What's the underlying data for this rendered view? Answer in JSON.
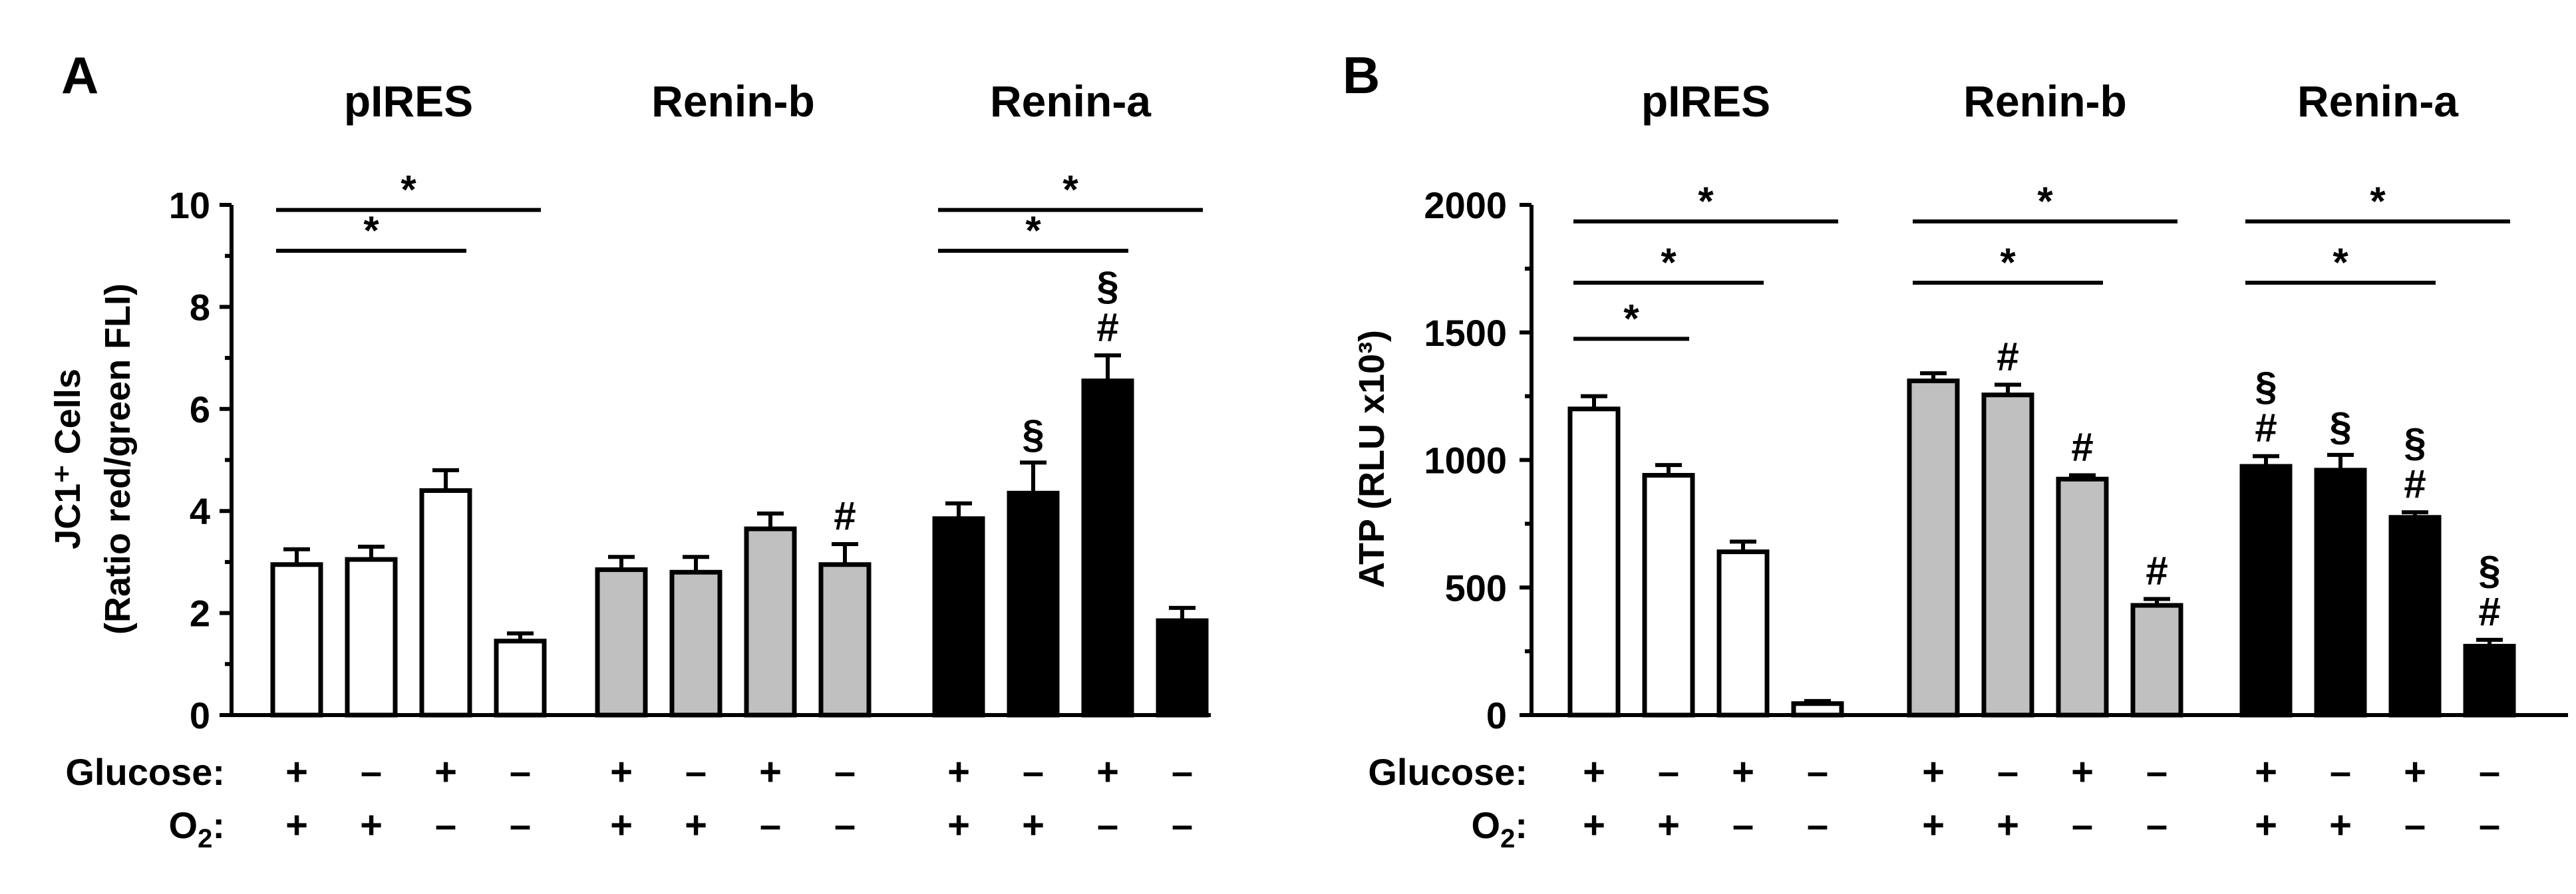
{
  "chart_data": [
    {
      "panel": "A",
      "type": "bar",
      "ylabel_line1": "JC1⁺ Cells",
      "ylabel_line2": "(Ratio red/green FLI)",
      "ylim": [
        0,
        10
      ],
      "yticks": [
        0,
        2,
        4,
        6,
        8,
        10
      ],
      "groups": [
        {
          "name": "pIRES",
          "color": "#ffffff",
          "values": [
            2.95,
            3.05,
            4.4,
            1.45
          ],
          "errors": [
            0.3,
            0.25,
            0.4,
            0.15
          ],
          "marks": [
            "",
            "",
            "",
            ""
          ]
        },
        {
          "name": "Renin-b",
          "color": "#c0c0c0",
          "values": [
            2.85,
            2.8,
            3.65,
            2.95
          ],
          "errors": [
            0.25,
            0.3,
            0.3,
            0.4
          ],
          "marks": [
            "",
            "",
            "",
            "#"
          ]
        },
        {
          "name": "Renin-a",
          "color": "#000000",
          "values": [
            3.85,
            4.35,
            6.55,
            1.85
          ],
          "errors": [
            0.3,
            0.6,
            0.5,
            0.25
          ],
          "marks": [
            "",
            "§",
            "§\n#",
            ""
          ]
        }
      ],
      "significance": [
        {
          "group": 0,
          "from": 0,
          "to": 3,
          "label": "*",
          "y": 9.9
        },
        {
          "group": 0,
          "from": 0,
          "to": 2,
          "label": "*",
          "y": 9.1
        },
        {
          "group": 2,
          "from": 0,
          "to": 3,
          "label": "*",
          "y": 9.9
        },
        {
          "group": 2,
          "from": 0,
          "to": 2,
          "label": "*",
          "y": 9.1
        }
      ]
    },
    {
      "panel": "B",
      "type": "bar",
      "ylabel": "ATP (RLU x10³)",
      "ylim": [
        0,
        2000
      ],
      "yticks": [
        0,
        500,
        1000,
        1500,
        2000
      ],
      "groups": [
        {
          "name": "pIRES",
          "color": "#ffffff",
          "values": [
            1200,
            940,
            640,
            45
          ],
          "errors": [
            50,
            40,
            40,
            10
          ],
          "marks": [
            "",
            "",
            "",
            ""
          ]
        },
        {
          "name": "Renin-b",
          "color": "#c0c0c0",
          "values": [
            1310,
            1255,
            925,
            430
          ],
          "errors": [
            30,
            40,
            15,
            25
          ],
          "marks": [
            "",
            "#",
            "#",
            "#"
          ]
        },
        {
          "name": "Renin-a",
          "color": "#000000",
          "values": [
            975,
            960,
            775,
            270
          ],
          "errors": [
            40,
            60,
            20,
            25
          ],
          "marks": [
            "§\n#",
            "§",
            "§\n#",
            "§\n#"
          ]
        }
      ],
      "significance": [
        {
          "group": 0,
          "from": 0,
          "to": 3,
          "label": "*",
          "y": 1935
        },
        {
          "group": 0,
          "from": 0,
          "to": 2,
          "label": "*",
          "y": 1695
        },
        {
          "group": 0,
          "from": 0,
          "to": 1,
          "label": "*",
          "y": 1475
        },
        {
          "group": 1,
          "from": 0,
          "to": 3,
          "label": "*",
          "y": 1935
        },
        {
          "group": 1,
          "from": 0,
          "to": 2,
          "label": "*",
          "y": 1695
        },
        {
          "group": 2,
          "from": 0,
          "to": 3,
          "label": "*",
          "y": 1935
        },
        {
          "group": 2,
          "from": 0,
          "to": 2,
          "label": "*",
          "y": 1695
        }
      ]
    }
  ],
  "conditions": {
    "glucose_label": "Glucose:",
    "o2_label_main": "O",
    "o2_label_sub": "2",
    "o2_label_colon": ":",
    "glucose": [
      "+",
      "–",
      "+",
      "–"
    ],
    "o2": [
      "+",
      "+",
      "–",
      "–"
    ]
  }
}
